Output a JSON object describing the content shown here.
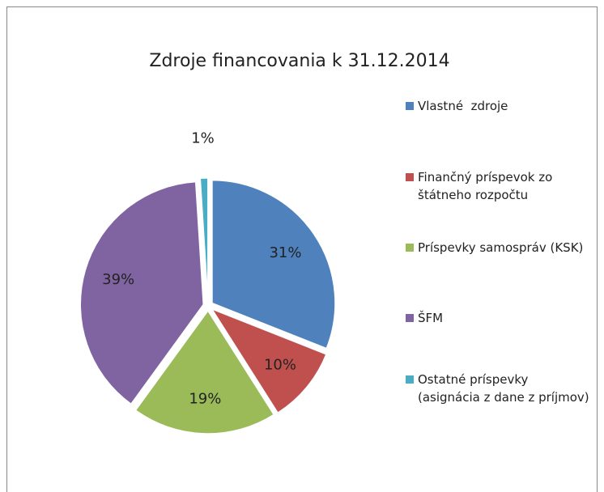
{
  "chart_data": {
    "type": "pie",
    "title": "Zdroje financovania k 31.12.2014",
    "categories": [
      "Vlastné  zdroje",
      "Finančný príspevok zo štátneho rozpočtu",
      "Príspevky samospráv (KSK)",
      "ŠFM",
      "Ostatné príspevky (asignácia z dane z príjmov)"
    ],
    "values": [
      31,
      10,
      19,
      39,
      1
    ],
    "value_labels": [
      "31%",
      "10%",
      "19%",
      "39%",
      "1%"
    ],
    "colors": [
      "#4f81bd",
      "#c0504d",
      "#9bbb59",
      "#8064a2",
      "#4bacc6"
    ],
    "legend": "right"
  }
}
